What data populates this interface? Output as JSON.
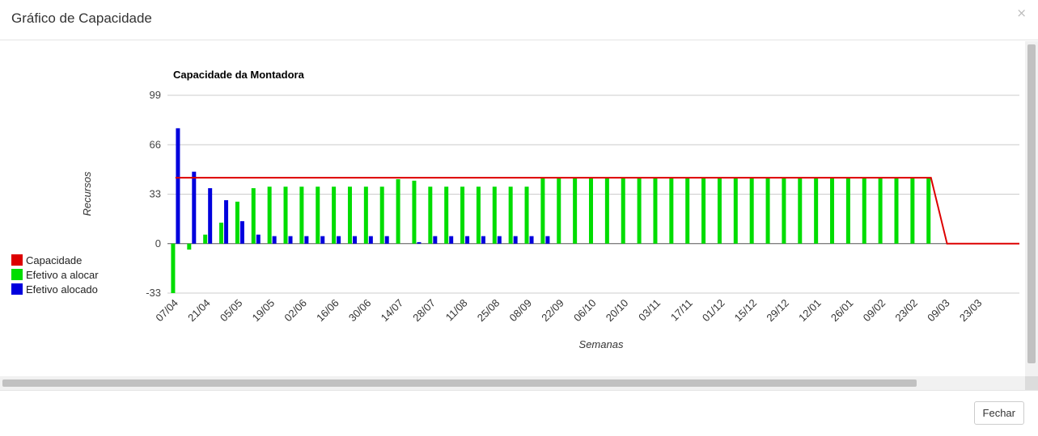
{
  "modal": {
    "title": "Gráfico de Capacidade",
    "close_label": "×",
    "footer_button": "Fechar"
  },
  "colors": {
    "capacidade": "#dd0000",
    "efetivo_a_alocar": "#00dd00",
    "efetivo_alocado": "#0000dd"
  },
  "chart_data": {
    "type": "bar",
    "title": "Capacidade da Montadora",
    "xlabel": "Semanas",
    "ylabel": "Recursos",
    "ylim": [
      -33,
      99
    ],
    "yticks": [
      -33,
      0,
      33,
      66,
      99
    ],
    "grid": true,
    "legend_position": "bottom-left",
    "x_tick_labels": [
      "07/04",
      "21/04",
      "05/05",
      "19/05",
      "02/06",
      "16/06",
      "30/06",
      "14/07",
      "28/07",
      "11/08",
      "25/08",
      "08/09",
      "22/09",
      "06/10",
      "20/10",
      "03/11",
      "17/11",
      "01/12",
      "15/12",
      "29/12",
      "12/01",
      "26/01",
      "09/02",
      "23/02",
      "09/03",
      "23/03"
    ],
    "series": [
      {
        "name": "Capacidade",
        "kind": "line",
        "values": [
          44,
          44,
          44,
          44,
          44,
          44,
          44,
          44,
          44,
          44,
          44,
          44,
          44,
          44,
          44,
          44,
          44,
          44,
          44,
          44,
          44,
          44,
          44,
          44,
          44,
          44,
          44,
          44,
          44,
          44,
          44,
          44,
          44,
          44,
          44,
          44,
          44,
          44,
          44,
          44,
          44,
          44,
          44,
          44,
          44,
          44,
          44,
          44,
          0,
          0,
          0,
          0,
          0
        ]
      },
      {
        "name": "Efetivo a alocar",
        "kind": "bar",
        "values": [
          -33,
          -4,
          6,
          14,
          28,
          37,
          38,
          38,
          38,
          38,
          38,
          38,
          38,
          38,
          43,
          42,
          38,
          38,
          38,
          38,
          38,
          38,
          38,
          44,
          44,
          44,
          44,
          44,
          44,
          44,
          44,
          44,
          44,
          44,
          44,
          44,
          44,
          44,
          44,
          44,
          44,
          44,
          44,
          44,
          44,
          44,
          44,
          44,
          0,
          0,
          0,
          0,
          0
        ]
      },
      {
        "name": "Efetivo alocado",
        "kind": "bar",
        "values": [
          77,
          48,
          37,
          29,
          15,
          6,
          5,
          5,
          5,
          5,
          5,
          5,
          5,
          5,
          0,
          1,
          5,
          5,
          5,
          5,
          5,
          5,
          5,
          5,
          0,
          0,
          0,
          0,
          0,
          0,
          0,
          0,
          0,
          0,
          0,
          0,
          0,
          0,
          0,
          0,
          0,
          0,
          0,
          0,
          0,
          0,
          0,
          0,
          0,
          0,
          0,
          0,
          0
        ]
      }
    ]
  }
}
